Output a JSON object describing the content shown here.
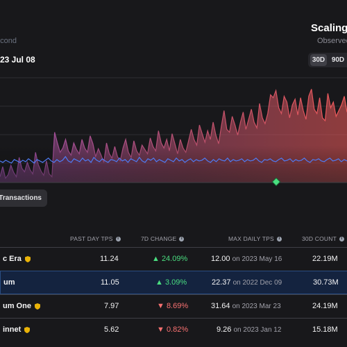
{
  "header": {
    "subtitle_left": "econd",
    "date": "23 Jul 08",
    "brand": "Scaling",
    "observed": "Observed"
  },
  "range_buttons": [
    "30D",
    "90D"
  ],
  "actions": {
    "transactions_button": "t Transactions"
  },
  "colors": {
    "accent_red": "#f05a5a",
    "accent_purple": "#9a4fa8",
    "line_blue": "#4f7cf5",
    "marker_green": "#4ade80",
    "highlight_row": "#14233f"
  },
  "chart_data": {
    "type": "area",
    "series": [
      {
        "values": [
          8,
          22,
          6,
          11,
          24,
          14,
          8,
          35,
          20,
          15,
          28,
          18,
          12,
          42,
          25,
          16,
          10,
          30,
          12,
          8,
          70,
          55,
          42,
          48,
          60,
          44,
          38,
          55,
          46,
          40,
          60,
          48,
          42,
          65,
          54,
          36,
          47,
          38,
          28,
          55,
          40,
          34,
          50,
          36,
          30,
          48,
          60,
          42,
          35,
          58,
          44,
          38,
          52,
          46,
          40,
          62,
          50,
          44,
          72,
          55,
          48,
          60,
          44,
          68,
          54,
          40,
          60,
          48,
          42,
          58,
          74,
          60,
          52,
          80,
          68,
          56,
          72,
          60,
          84,
          66,
          54,
          78,
          100,
          74,
          70,
          92,
          80,
          66,
          84,
          98,
          74,
          88,
          102,
          84,
          76,
          110,
          90,
          82,
          96,
          122,
          118,
          128,
          104,
          96,
          120,
          112,
          90,
          108,
          116,
          94,
          118,
          100,
          88,
          120,
          130,
          102,
          96,
          118,
          90,
          86,
          124,
          104,
          112,
          92,
          100,
          108,
          120,
          98
        ]
      },
      {
        "values": [
          30,
          28,
          31,
          29,
          27,
          32,
          30,
          28,
          31,
          29,
          33,
          30,
          27,
          32,
          30,
          28,
          31,
          34,
          30,
          28,
          32,
          29,
          31,
          36,
          30,
          28,
          33,
          31,
          29,
          34,
          30,
          32,
          28,
          35,
          31,
          29,
          33,
          30,
          28,
          32,
          31,
          29,
          34,
          30,
          32,
          28,
          33,
          31,
          29,
          35,
          30,
          28,
          33,
          31,
          34,
          29,
          32,
          30,
          28,
          33,
          31,
          29,
          34,
          30,
          32,
          28,
          31,
          33,
          29,
          32,
          30,
          31,
          34,
          30,
          28,
          32,
          29,
          33,
          31,
          30,
          34,
          29,
          32,
          30,
          31,
          33,
          29,
          32,
          30,
          31,
          34,
          30,
          28,
          32,
          31,
          33,
          30,
          29,
          32,
          34,
          30,
          31,
          33,
          29,
          32,
          30,
          31,
          34,
          30,
          28,
          32,
          31,
          33,
          30,
          29,
          32,
          34,
          30,
          31,
          33,
          29,
          32,
          30
        ]
      }
    ],
    "marker_label": ""
  },
  "table": {
    "columns": [
      "PAST DAY TPS",
      "7D CHANGE",
      "MAX DAILY TPS",
      "30D COUNT"
    ],
    "rows": [
      {
        "name": "c Era",
        "tps": "11.24",
        "change": "▲ 24.09%",
        "dir": "up",
        "max": "12.00",
        "on": "on 2023 May 16",
        "count": "22.19M"
      },
      {
        "name": "um",
        "tps": "11.05",
        "change": "▲ 3.09%",
        "dir": "up",
        "max": "22.37",
        "on": "on 2022 Dec 09",
        "count": "30.73M"
      },
      {
        "name": "um One",
        "tps": "7.97",
        "change": "▼ 8.69%",
        "dir": "down",
        "max": "31.64",
        "on": "on 2023 Mar 23",
        "count": "24.19M"
      },
      {
        "name": "innet",
        "tps": "5.62",
        "change": "▼ 0.82%",
        "dir": "down",
        "max": "9.26",
        "on": "on 2023 Jan 12",
        "count": "15.18M"
      }
    ]
  }
}
